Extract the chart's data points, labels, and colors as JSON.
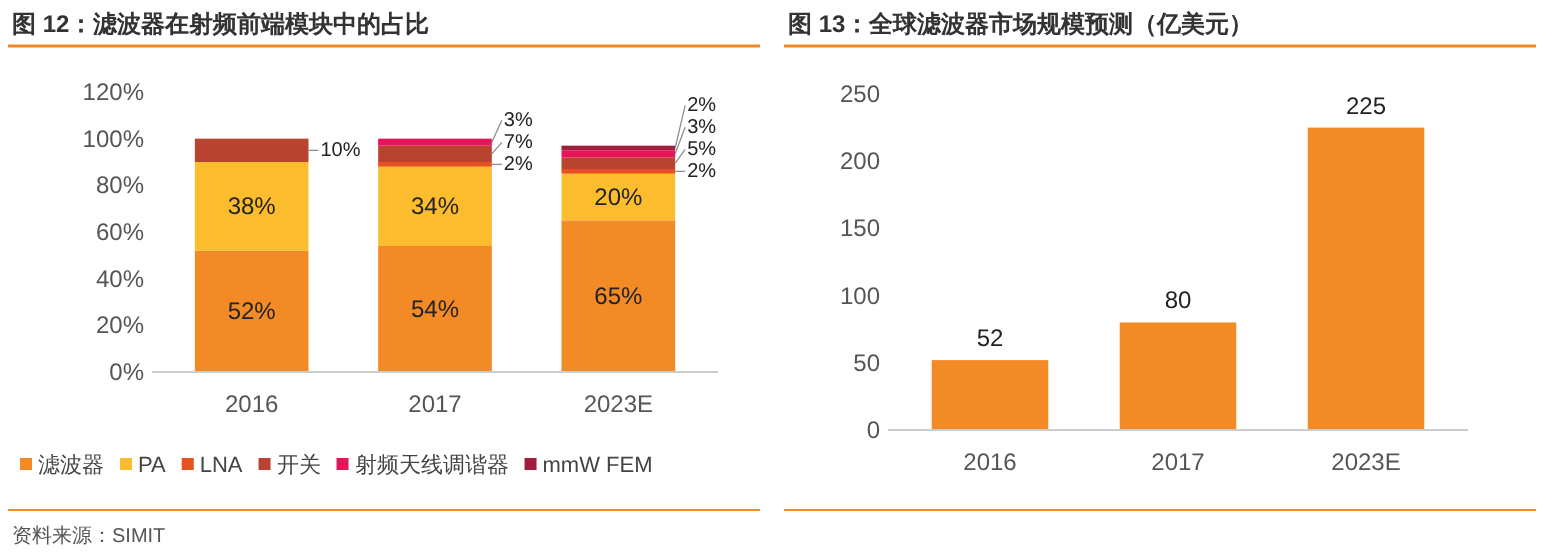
{
  "chart_data": [
    {
      "type": "bar",
      "title": "图 12：滤波器在射频前端模块中的占比",
      "stacked": true,
      "categories": [
        "2016",
        "2017",
        "2023E"
      ],
      "series": [
        {
          "name": "滤波器",
          "color": "#f28a26",
          "values": [
            52,
            54,
            65
          ],
          "value_labels": [
            "52%",
            "54%",
            "65%"
          ]
        },
        {
          "name": "PA",
          "color": "#fbbd2e",
          "values": [
            38,
            34,
            20
          ],
          "value_labels": [
            "38%",
            "34%",
            "20%"
          ]
        },
        {
          "name": "LNA",
          "color": "#e8501e",
          "values": [
            null,
            2,
            2
          ],
          "value_labels": [
            null,
            "2%",
            "2%"
          ]
        },
        {
          "name": "开关",
          "color": "#b8432e",
          "values": [
            10,
            7,
            5
          ],
          "value_labels": [
            "10%",
            "7%",
            "5%"
          ]
        },
        {
          "name": "射频天线调谐器",
          "color": "#e8145a",
          "values": [
            null,
            3,
            3
          ],
          "value_labels": [
            null,
            "3%",
            "3%"
          ]
        },
        {
          "name": "mmW FEM",
          "color": "#a11d3c",
          "values": [
            null,
            null,
            2
          ],
          "value_labels": [
            null,
            null,
            "2%"
          ]
        }
      ],
      "ylim": [
        0,
        120
      ],
      "yticks": [
        {
          "value": 0,
          "label": "0%"
        },
        {
          "value": 20,
          "label": "20%"
        },
        {
          "value": 40,
          "label": "40%"
        },
        {
          "value": 60,
          "label": "60%"
        },
        {
          "value": 80,
          "label": "80%"
        },
        {
          "value": 100,
          "label": "100%"
        },
        {
          "value": 120,
          "label": "120%"
        }
      ],
      "legend": "bottom",
      "grid": false,
      "annotations": [
        "资料来源：SIMIT"
      ]
    },
    {
      "type": "bar",
      "title": "图 13：全球滤波器市场规模预测（亿美元）",
      "categories": [
        "2016",
        "2017",
        "2023E"
      ],
      "values": [
        52,
        80,
        225
      ],
      "color": "#f28a26",
      "ylim": [
        0,
        250
      ],
      "yticks": [
        0,
        50,
        100,
        150,
        200,
        250
      ],
      "data_labels": true,
      "grid": false
    }
  ]
}
